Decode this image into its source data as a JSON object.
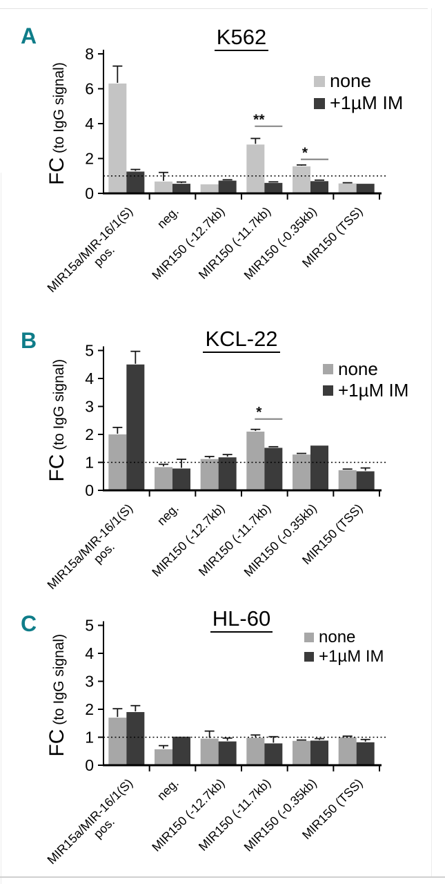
{
  "figure": {
    "accent_color": "#0f7d89",
    "axis_color": "#000000",
    "border_color": "#e2e2e2",
    "panels": [
      {
        "label": "A",
        "title": "K562",
        "ylabel_main": "FC",
        "ylabel_sub": " (to IgG signal)",
        "ymax": 8,
        "ytick_step": 2,
        "ref_line": 1,
        "categories": [
          [
            "MIR15a/MIR-16/1(S)",
            "pos."
          ],
          "neg.",
          "MIR150 (-12.7kb)",
          "MIR150 (-11.7kb)",
          "MIR150 (-0.35kb)",
          "MIR150 (TSS)"
        ],
        "series": [
          {
            "name": "none",
            "color": "#c4c4c4",
            "values": [
              6.3,
              0.68,
              0.52,
              2.8,
              1.55,
              0.57
            ],
            "errors": [
              1.0,
              0.52,
              0,
              0.35,
              0.08,
              0.04
            ]
          },
          {
            "name": "+1µM IM",
            "color": "#3b3b3b",
            "values": [
              1.25,
              0.55,
              0.73,
              0.6,
              0.7,
              0.55
            ],
            "errors": [
              0.12,
              0.1,
              0.05,
              0.06,
              0.06,
              0
            ]
          }
        ],
        "significance": [
          {
            "group": 3,
            "text": "**",
            "y": 3.85
          },
          {
            "group": 4,
            "text": "*",
            "y": 1.95
          }
        ]
      },
      {
        "label": "B",
        "title": "KCL-22",
        "ylabel_main": "FC",
        "ylabel_sub": " (to IgG signal)",
        "ymax": 5,
        "ytick_step": 1,
        "ref_line": 1,
        "categories": [
          [
            "MIR15a/MIR-16/1(S)",
            "pos."
          ],
          "neg.",
          "MIR150 (-12.7kb)",
          "MIR150 (-11.7kb)",
          "MIR150 (-0.35kb)",
          "MIR150 (TSS)"
        ],
        "series": [
          {
            "name": "none",
            "color": "#a7a7a7",
            "values": [
              2.0,
              0.83,
              1.12,
              2.1,
              1.28,
              0.72
            ],
            "errors": [
              0.25,
              0.1,
              0.09,
              0.08,
              0.04,
              0.04
            ]
          },
          {
            "name": "+1µM IM",
            "color": "#3b3b3b",
            "values": [
              4.5,
              0.78,
              1.18,
              1.52,
              1.6,
              0.68
            ],
            "errors": [
              0.47,
              0.33,
              0.1,
              0.04,
              0,
              0.12
            ]
          }
        ],
        "significance": [
          {
            "group": 3,
            "text": "*",
            "y": 2.55
          }
        ]
      },
      {
        "label": "C",
        "title": "HL-60",
        "ylabel_main": "FC",
        "ylabel_sub": " (to IgG signal)",
        "ymax": 5,
        "ytick_step": 1,
        "ref_line": 1,
        "categories": [
          [
            "MIR15a/MIR-16/1(S)",
            "pos."
          ],
          "neg.",
          "MIR150 (-12.7kb)",
          "MIR150 (-11.7kb)",
          "MIR150 (-0.35kb)",
          "MIR150 (TSS)"
        ],
        "series": [
          {
            "name": "none",
            "color": "#a7a7a7",
            "values": [
              1.7,
              0.57,
              0.95,
              0.98,
              0.87,
              1.0
            ],
            "errors": [
              0.32,
              0.13,
              0.27,
              0.1,
              0.03,
              0.04
            ]
          },
          {
            "name": "+1µM IM",
            "color": "#3b3b3b",
            "values": [
              1.9,
              1.02,
              0.85,
              0.78,
              0.88,
              0.82
            ],
            "errors": [
              0.23,
              0,
              0.12,
              0.24,
              0.07,
              0.1
            ]
          }
        ],
        "significance": []
      }
    ]
  },
  "chart_data": [
    {
      "type": "bar",
      "title": "K562",
      "ylabel": "FC (to IgG signal)",
      "ylim": [
        0,
        8
      ],
      "grid": false,
      "legend_position": "top-right",
      "reference_line_y": 1,
      "categories": [
        "MIR15a/MIR-16/1(S) pos.",
        "neg.",
        "MIR150 (-12.7kb)",
        "MIR150 (-11.7kb)",
        "MIR150 (-0.35kb)",
        "MIR150 (TSS)"
      ],
      "series": [
        {
          "name": "none",
          "values": [
            6.3,
            0.68,
            0.52,
            2.8,
            1.55,
            0.57
          ],
          "errors_upper": [
            1.0,
            0.52,
            0,
            0.35,
            0.08,
            0.04
          ]
        },
        {
          "name": "+1µM IM",
          "values": [
            1.25,
            0.55,
            0.73,
            0.6,
            0.7,
            0.55
          ],
          "errors_upper": [
            0.12,
            0.1,
            0.05,
            0.06,
            0.06,
            0
          ]
        }
      ],
      "annotations": [
        {
          "category": "MIR150 (-11.7kb)",
          "text": "**"
        },
        {
          "category": "MIR150 (-0.35kb)",
          "text": "*"
        }
      ]
    },
    {
      "type": "bar",
      "title": "KCL-22",
      "ylabel": "FC (to IgG signal)",
      "ylim": [
        0,
        5
      ],
      "grid": false,
      "legend_position": "top-right",
      "reference_line_y": 1,
      "categories": [
        "MIR15a/MIR-16/1(S) pos.",
        "neg.",
        "MIR150 (-12.7kb)",
        "MIR150 (-11.7kb)",
        "MIR150 (-0.35kb)",
        "MIR150 (TSS)"
      ],
      "series": [
        {
          "name": "none",
          "values": [
            2.0,
            0.83,
            1.12,
            2.1,
            1.28,
            0.72
          ],
          "errors_upper": [
            0.25,
            0.1,
            0.09,
            0.08,
            0.04,
            0.04
          ]
        },
        {
          "name": "+1µM IM",
          "values": [
            4.5,
            0.78,
            1.18,
            1.52,
            1.6,
            0.68
          ],
          "errors_upper": [
            0.47,
            0.33,
            0.1,
            0.04,
            0,
            0.12
          ]
        }
      ],
      "annotations": [
        {
          "category": "MIR150 (-11.7kb)",
          "text": "*"
        }
      ]
    },
    {
      "type": "bar",
      "title": "HL-60",
      "ylabel": "FC (to IgG signal)",
      "ylim": [
        0,
        5
      ],
      "grid": false,
      "legend_position": "top-right",
      "reference_line_y": 1,
      "categories": [
        "MIR15a/MIR-16/1(S) pos.",
        "neg.",
        "MIR150 (-12.7kb)",
        "MIR150 (-11.7kb)",
        "MIR150 (-0.35kb)",
        "MIR150 (TSS)"
      ],
      "series": [
        {
          "name": "none",
          "values": [
            1.7,
            0.57,
            0.95,
            0.98,
            0.87,
            1.0
          ],
          "errors_upper": [
            0.32,
            0.13,
            0.27,
            0.1,
            0.03,
            0.04
          ]
        },
        {
          "name": "+1µM IM",
          "values": [
            1.9,
            1.02,
            0.85,
            0.78,
            0.88,
            0.82
          ],
          "errors_upper": [
            0.23,
            0,
            0.12,
            0.24,
            0.07,
            0.1
          ]
        }
      ],
      "annotations": []
    }
  ]
}
